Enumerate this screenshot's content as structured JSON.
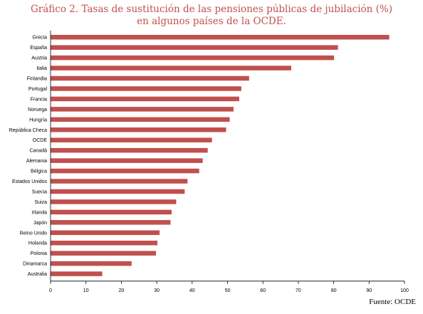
{
  "chart_data": {
    "type": "bar",
    "orientation": "horizontal",
    "title_line1": "Gráfico 2. Tasas de sustitución de las pensiones públicas de jubilación (%)",
    "title_line2": "en algunos países de la OCDE.",
    "categories": [
      "Grecia",
      "España",
      "Austria",
      "Italia",
      "Finlandia",
      "Portugal",
      "Francia",
      "Noruega",
      "Hungría",
      "República Checa",
      "OCDE",
      "Canadá",
      "Alemania",
      "Bélgica",
      "Estados Unidos",
      "Suecia",
      "Suiza",
      "Irlanda",
      "Japón",
      "Reino Unido",
      "Holanda",
      "Polonia",
      "Dinamarca",
      "Australia"
    ],
    "values": [
      95.7,
      81.2,
      80.1,
      68.0,
      56.1,
      53.9,
      53.3,
      51.7,
      50.6,
      49.6,
      45.6,
      44.4,
      43.0,
      42.0,
      38.7,
      37.9,
      35.5,
      34.2,
      33.9,
      30.8,
      30.2,
      29.8,
      22.9,
      14.6
    ],
    "xlim": [
      0,
      100
    ],
    "xticks": [
      0,
      10,
      20,
      30,
      40,
      50,
      60,
      70,
      80,
      90,
      100
    ],
    "bar_color": "#c0504d",
    "grid": false,
    "legend": "none"
  },
  "source": "Fuente: OCDE"
}
